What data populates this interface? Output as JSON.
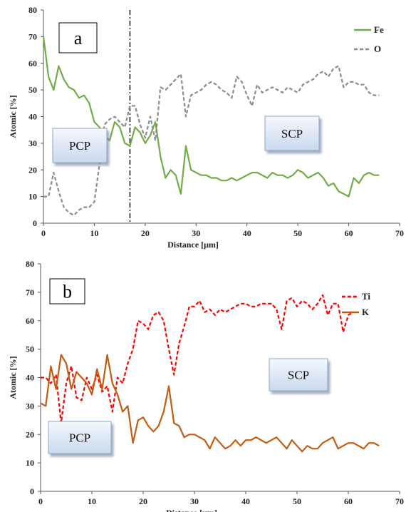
{
  "chart_data": [
    {
      "type": "line",
      "panel_label": "a",
      "xlabel": "Distance [μm]",
      "ylabel": "Atomic [%]",
      "xlim": [
        0,
        70
      ],
      "ylim": [
        0,
        80
      ],
      "xticks": [
        0,
        10,
        20,
        30,
        40,
        50,
        60,
        70
      ],
      "yticks": [
        0,
        10,
        20,
        30,
        40,
        50,
        60,
        70,
        80
      ],
      "grid": false,
      "legend": "top-right",
      "marker_line_x": 17,
      "annotations": [
        "PCP",
        "SCP"
      ],
      "series": [
        {
          "name": "Fe",
          "color": "#70ad47",
          "style": "solid",
          "x": [
            0,
            1,
            2,
            3,
            4,
            5,
            6,
            7,
            8,
            9,
            10,
            11,
            12,
            13,
            14,
            15,
            16,
            17,
            18,
            19,
            20,
            21,
            22,
            23,
            24,
            25,
            26,
            27,
            28,
            29,
            30,
            31,
            32,
            33,
            34,
            35,
            36,
            37,
            38,
            39,
            40,
            41,
            42,
            43,
            44,
            45,
            46,
            47,
            48,
            49,
            50,
            51,
            52,
            53,
            54,
            55,
            56,
            57,
            58,
            59,
            60,
            61,
            62,
            63,
            64,
            65,
            66
          ],
          "values": [
            70,
            55,
            50,
            59,
            54,
            51,
            50,
            47,
            48,
            45,
            38,
            36,
            33,
            31,
            38,
            36,
            30,
            29,
            36,
            34,
            30,
            33,
            38,
            25,
            17,
            20,
            18,
            11,
            29,
            20,
            19,
            18,
            18,
            17,
            17,
            16,
            16,
            17,
            16,
            17,
            18,
            19,
            19,
            18,
            17,
            19,
            18,
            18,
            17,
            18,
            20,
            19,
            17,
            18,
            19,
            17,
            14,
            15,
            12,
            11,
            10,
            17,
            15,
            18,
            19,
            18,
            18
          ]
        },
        {
          "name": "O",
          "color": "#8c8c8c",
          "style": "dashed",
          "x": [
            0,
            1,
            2,
            3,
            4,
            5,
            6,
            7,
            8,
            9,
            10,
            11,
            12,
            13,
            14,
            15,
            16,
            17,
            18,
            19,
            20,
            21,
            22,
            23,
            24,
            25,
            26,
            27,
            28,
            29,
            30,
            31,
            32,
            33,
            34,
            35,
            36,
            37,
            38,
            39,
            40,
            41,
            42,
            43,
            44,
            45,
            46,
            47,
            48,
            49,
            50,
            51,
            52,
            53,
            54,
            55,
            56,
            57,
            58,
            59,
            60,
            61,
            62,
            63,
            64,
            65,
            66
          ],
          "values": [
            10,
            10,
            19,
            12,
            6,
            4,
            3,
            5,
            6,
            6,
            8,
            22,
            37,
            39,
            40,
            38,
            36,
            44,
            44,
            37,
            32,
            40,
            31,
            51,
            50,
            52,
            54,
            56,
            40,
            48,
            49,
            50,
            52,
            53,
            52,
            50,
            49,
            47,
            55,
            53,
            48,
            44,
            52,
            49,
            50,
            51,
            50,
            49,
            51,
            50,
            49,
            52,
            53,
            54,
            56,
            57,
            55,
            58,
            59,
            51,
            53,
            53,
            52,
            52,
            49,
            48,
            48
          ]
        }
      ]
    },
    {
      "type": "line",
      "panel_label": "b",
      "xlabel": "Distance [μm]",
      "ylabel": "Atomic [%]",
      "xlim": [
        0,
        70
      ],
      "ylim": [
        0,
        80
      ],
      "xticks": [
        0,
        10,
        20,
        30,
        40,
        50,
        60,
        70
      ],
      "yticks": [
        0,
        10,
        20,
        30,
        40,
        50,
        60,
        70,
        80
      ],
      "grid": false,
      "legend": "top-right",
      "annotations": [
        "SCP",
        "PCP"
      ],
      "series": [
        {
          "name": "Ti",
          "color": "#ff0000",
          "style": "dashed",
          "x": [
            0,
            1,
            2,
            3,
            4,
            5,
            6,
            7,
            8,
            9,
            10,
            11,
            12,
            13,
            14,
            15,
            16,
            17,
            18,
            19,
            20,
            21,
            22,
            23,
            24,
            25,
            26,
            27,
            28,
            29,
            30,
            31,
            32,
            33,
            34,
            35,
            36,
            37,
            38,
            39,
            40,
            41,
            42,
            43,
            44,
            45,
            46,
            47,
            48,
            49,
            50,
            51,
            52,
            53,
            54,
            55,
            56,
            57,
            58,
            59,
            60,
            61
          ],
          "values": [
            40,
            40,
            38,
            41,
            24,
            38,
            44,
            33,
            32,
            40,
            36,
            41,
            35,
            37,
            28,
            40,
            38,
            45,
            50,
            60,
            59,
            57,
            62,
            63,
            60,
            50,
            41,
            52,
            58,
            65,
            65,
            67,
            63,
            64,
            62,
            64,
            63,
            64,
            65,
            66,
            66,
            65,
            65,
            66,
            66,
            66,
            64,
            57,
            67,
            68,
            65,
            67,
            66,
            64,
            66,
            69,
            62,
            66,
            66,
            56,
            62,
            63
          ]
        },
        {
          "name": "K",
          "color": "#c55a11",
          "style": "solid",
          "x": [
            0,
            1,
            2,
            3,
            4,
            5,
            6,
            7,
            8,
            9,
            10,
            11,
            12,
            13,
            14,
            15,
            16,
            17,
            18,
            19,
            20,
            21,
            22,
            23,
            24,
            25,
            26,
            27,
            28,
            29,
            30,
            31,
            32,
            33,
            34,
            35,
            36,
            37,
            38,
            39,
            40,
            41,
            42,
            43,
            44,
            45,
            46,
            47,
            48,
            49,
            50,
            51,
            52,
            53,
            54,
            55,
            56,
            57,
            58,
            59,
            60,
            61,
            62,
            63,
            64,
            65,
            66
          ],
          "values": [
            31,
            30,
            44,
            36,
            48,
            45,
            36,
            42,
            40,
            38,
            34,
            43,
            36,
            48,
            38,
            34,
            28,
            30,
            17,
            25,
            26,
            23,
            21,
            23,
            28,
            37,
            24,
            23,
            19,
            20,
            20,
            19,
            18,
            15,
            19,
            17,
            15,
            16,
            18,
            16,
            18,
            18,
            19,
            18,
            17,
            18,
            19,
            17,
            15,
            18,
            16,
            14,
            16,
            15,
            15,
            17,
            18,
            19,
            15,
            16,
            17,
            17,
            16,
            15,
            17,
            17,
            16
          ]
        }
      ]
    }
  ]
}
